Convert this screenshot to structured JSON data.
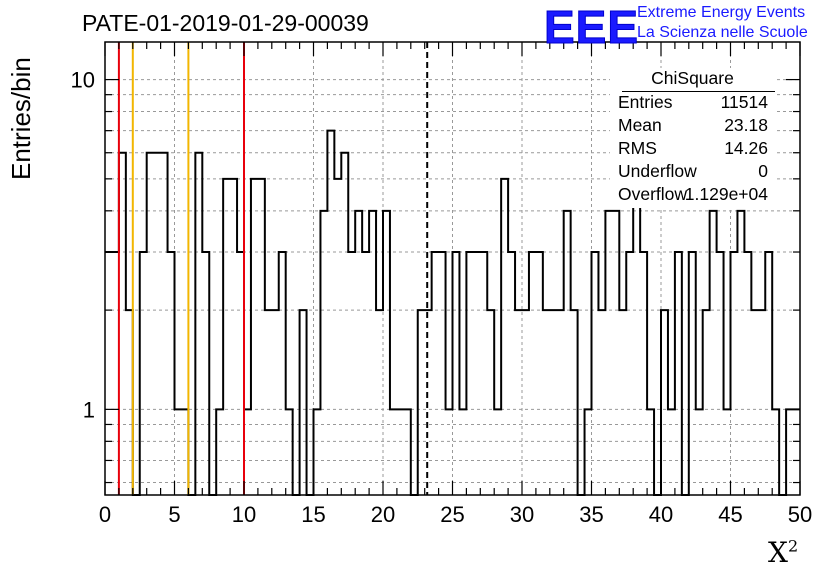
{
  "page": {
    "title": "PATE-01-2019-01-29-00039",
    "logo": {
      "mark": "EEE",
      "line1": "Extreme Energy Events",
      "line2": "La Scienza nelle Scuole",
      "color": "#1a1aff"
    }
  },
  "stats": {
    "title": "ChiSquare",
    "rows": [
      {
        "label": "Entries",
        "value": "11514"
      },
      {
        "label": "Mean",
        "value": "23.18"
      },
      {
        "label": "RMS",
        "value": "14.26"
      },
      {
        "label": "Underflow",
        "value": "0"
      },
      {
        "label": "Overflow",
        "value": "1.129e+04"
      }
    ]
  },
  "chart_data": {
    "type": "bar",
    "style": "step-histogram",
    "title": "PATE-01-2019-01-29-00039",
    "xlabel": "X²",
    "ylabel": "Entries/bin",
    "xlim": [
      0,
      50
    ],
    "ylim": [
      0.55,
      13
    ],
    "yscale": "log",
    "grid": true,
    "bin_width": 0.5,
    "values": [
      3,
      3,
      6,
      2,
      0,
      3,
      6,
      6,
      6,
      3,
      1,
      1,
      0,
      6,
      3,
      0,
      1,
      5,
      5,
      3,
      1,
      5,
      5,
      2,
      2,
      3,
      1,
      0,
      2,
      0,
      1,
      4,
      7,
      5,
      6,
      3,
      4,
      3,
      4,
      2,
      4,
      1,
      1,
      1,
      0,
      2,
      2,
      3,
      3,
      1,
      3,
      1,
      3,
      3,
      3,
      2,
      1,
      5,
      3,
      2,
      2,
      3,
      3,
      2,
      2,
      2,
      4,
      2,
      0,
      1,
      3,
      2,
      4,
      4,
      2,
      3,
      5,
      3,
      1,
      0,
      2,
      1,
      3,
      0,
      3,
      1,
      2,
      4,
      3,
      1,
      3,
      4,
      3,
      2,
      2,
      3,
      1,
      0,
      1,
      1
    ],
    "xticks": [
      0,
      5,
      10,
      15,
      20,
      25,
      30,
      35,
      40,
      45,
      50
    ],
    "yticks": [
      1,
      10
    ],
    "vlines": [
      {
        "x": 1,
        "color": "#e8000b",
        "style": "solid"
      },
      {
        "x": 2,
        "color": "#f2b600",
        "style": "solid"
      },
      {
        "x": 6,
        "color": "#f2b600",
        "style": "solid"
      },
      {
        "x": 10,
        "color": "#e8000b",
        "style": "solid"
      },
      {
        "x": 23.18,
        "color": "#000000",
        "style": "dashed"
      }
    ],
    "line_color": "#000000"
  }
}
